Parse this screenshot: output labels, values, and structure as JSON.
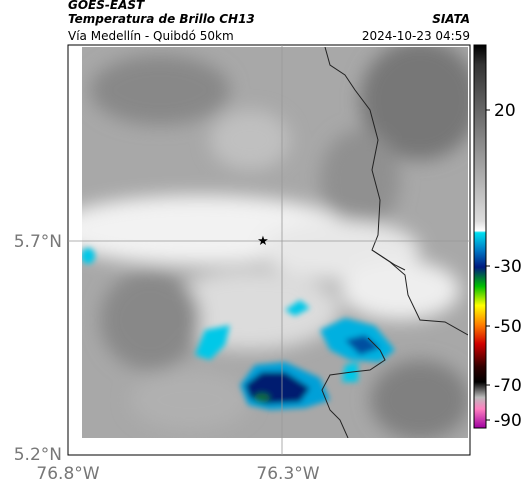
{
  "header": {
    "source": "GOES-EAST",
    "title": "Temperatura de Brillo CH13",
    "subtitle": "Vía Medellín - Quibdó 50km",
    "org": "SIATA",
    "datetime": "2024-10-23 04:59"
  },
  "map": {
    "lat_labels": [
      "5.7°N",
      "5.2°N"
    ],
    "lon_labels": [
      "76.8°W",
      "76.3°W"
    ]
  },
  "colorbar": {
    "tick_labels": [
      "20",
      "-30",
      "-50",
      "-70",
      "-90"
    ]
  }
}
